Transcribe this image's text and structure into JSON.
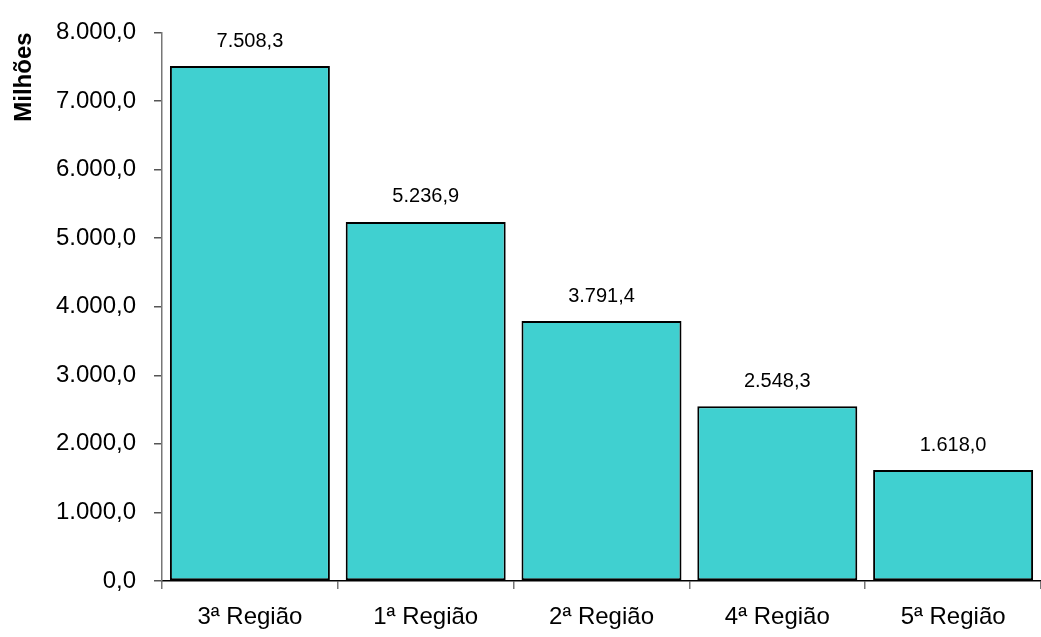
{
  "chart_data": {
    "type": "bar",
    "ylabel": "Milhões",
    "categories": [
      "3ª Região",
      "1ª Região",
      "2ª Região",
      "4ª Região",
      "5ª Região"
    ],
    "values": [
      7508.3,
      5236.9,
      3791.4,
      2548.3,
      1618.0
    ],
    "value_labels": [
      "7.508,3",
      "5.236,9",
      "3.791,4",
      "2.548,3",
      "1.618,0"
    ],
    "color": "#40d0d0",
    "ylim": [
      0,
      8000
    ],
    "yticks": [
      {
        "value": 0,
        "label": "0,0"
      },
      {
        "value": 1000,
        "label": "1.000,0"
      },
      {
        "value": 2000,
        "label": "2.000,0"
      },
      {
        "value": 3000,
        "label": "3.000,0"
      },
      {
        "value": 4000,
        "label": "4.000,0"
      },
      {
        "value": 5000,
        "label": "5.000,0"
      },
      {
        "value": 6000,
        "label": "6.000,0"
      },
      {
        "value": 7000,
        "label": "7.000,0"
      },
      {
        "value": 8000,
        "label": "8.000,0"
      }
    ]
  }
}
